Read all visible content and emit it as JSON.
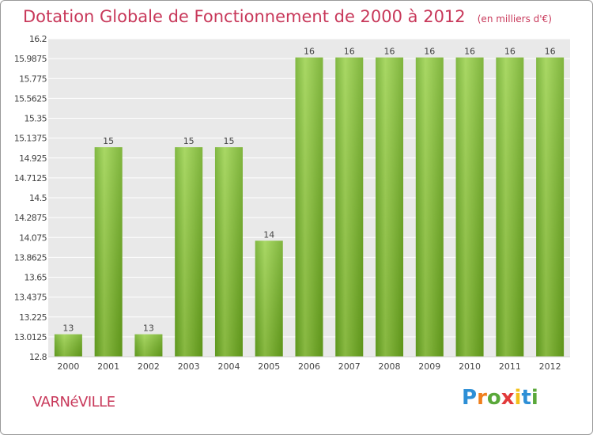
{
  "chart_data": {
    "type": "bar",
    "title": "Dotation Globale de Fonctionnement de 2000 à 2012",
    "subtitle": "(en milliers d'€)",
    "categories": [
      "2000",
      "2001",
      "2002",
      "2003",
      "2004",
      "2005",
      "2006",
      "2007",
      "2008",
      "2009",
      "2010",
      "2011",
      "2012"
    ],
    "values": [
      13.04,
      15.04,
      13.04,
      15.04,
      15.04,
      14.04,
      16.0,
      16.0,
      16.0,
      16.0,
      16.0,
      16.0,
      16.0
    ],
    "data_labels": [
      "13",
      "15",
      "13",
      "15",
      "15",
      "14",
      "16",
      "16",
      "16",
      "16",
      "16",
      "16",
      "16"
    ],
    "yticks": [
      "12.8",
      "13.0125",
      "13.225",
      "13.4375",
      "13.65",
      "13.8625",
      "14.075",
      "14.2875",
      "14.5",
      "14.7125",
      "14.925",
      "15.1375",
      "15.35",
      "15.5625",
      "15.775",
      "15.9875",
      "16.2"
    ],
    "ylim": [
      12.8,
      16.2
    ],
    "grid": true,
    "xlabel": "",
    "ylabel": "",
    "colors": {
      "bar": "#7fbf2a",
      "bar_light": "#9ad14a",
      "bar_dark": "#62a21a",
      "text": "#c8385a",
      "axis_text": "#444444"
    }
  },
  "place_name": "VARNéVILLE",
  "logo": {
    "letters": [
      "P",
      "r",
      "o",
      "x",
      "i",
      "t",
      "i"
    ],
    "colors": [
      "#2d8fd6",
      "#f07f1d",
      "#5aa83a",
      "#e23a3a",
      "#f3c11b",
      "#2d8fd6",
      "#5aa83a"
    ]
  }
}
